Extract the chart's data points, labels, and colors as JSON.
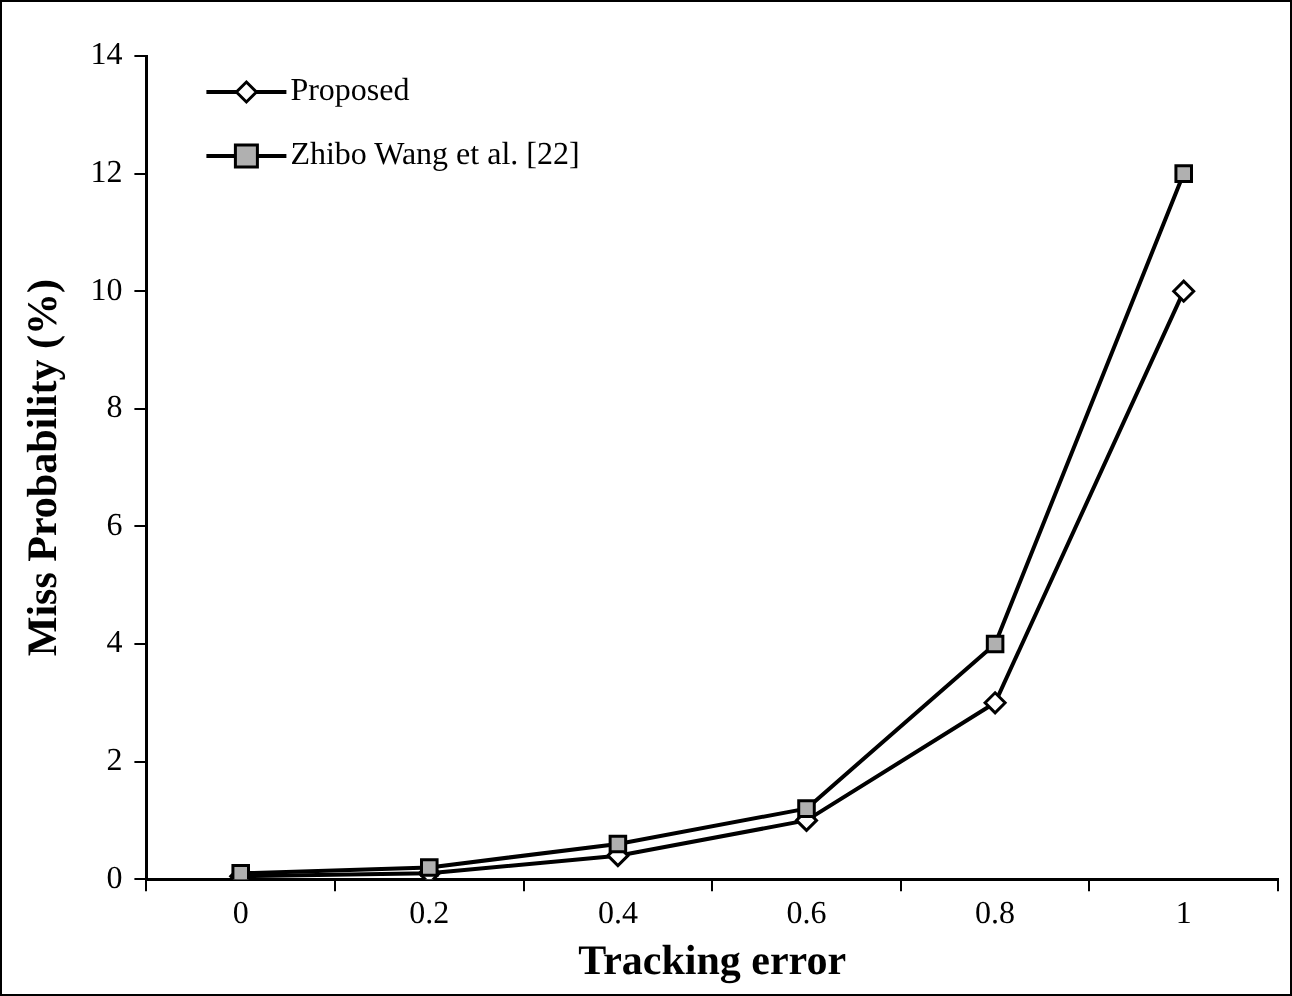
{
  "chart_data": {
    "type": "line",
    "xlabel": "Tracking error",
    "ylabel": "Miss Probability (%)",
    "categories": [
      "0",
      "0.2",
      "0.4",
      "0.6",
      "0.8",
      "1"
    ],
    "series": [
      {
        "name": "Proposed",
        "color": "#000000",
        "marker": "diamond",
        "values": [
          0.05,
          0.1,
          0.4,
          1.0,
          3,
          10
        ]
      },
      {
        "name": "Zhibo Wang et al. [22]",
        "color": "#000000",
        "marker": "square",
        "values": [
          0.1,
          0.2,
          0.6,
          1.2,
          4,
          12
        ]
      }
    ],
    "ylim": [
      0,
      14
    ],
    "yticks": [
      0,
      2,
      4,
      6,
      8,
      10,
      12,
      14
    ],
    "grid": false,
    "legend": "top left",
    "line_style": "solid"
  }
}
